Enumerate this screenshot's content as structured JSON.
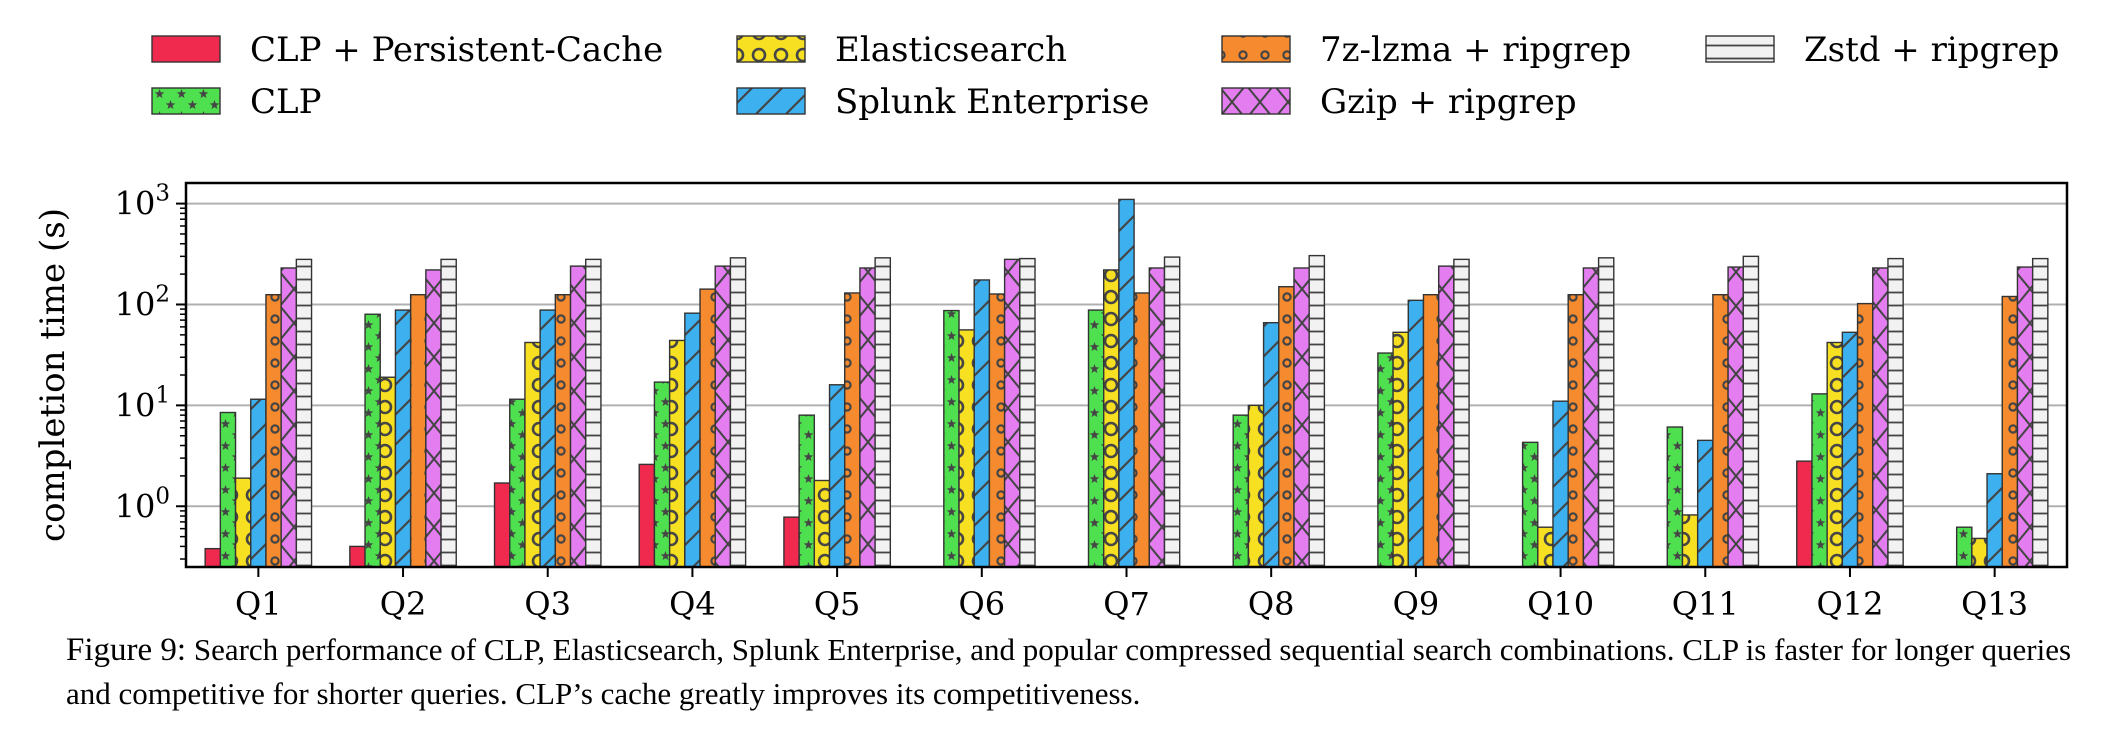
{
  "chart_data": {
    "type": "bar",
    "title": "",
    "xlabel": "",
    "ylabel": "completion time (s)",
    "yscale": "log",
    "ylim": [
      0.25,
      1600
    ],
    "yticks": [
      1,
      10,
      100,
      1000
    ],
    "ytick_labels": [
      {
        "base": "10",
        "exp": "0"
      },
      {
        "base": "10",
        "exp": "1"
      },
      {
        "base": "10",
        "exp": "2"
      },
      {
        "base": "10",
        "exp": "3"
      }
    ],
    "grid": "horizontal major",
    "legend_position": "top",
    "categories": [
      "Q1",
      "Q2",
      "Q3",
      "Q4",
      "Q5",
      "Q6",
      "Q7",
      "Q8",
      "Q9",
      "Q10",
      "Q11",
      "Q12",
      "Q13"
    ],
    "series": [
      {
        "name": "CLP + Persistent-Cache",
        "color": "#f0294f",
        "pattern": "solid",
        "values": [
          0.38,
          0.4,
          1.7,
          2.6,
          0.78,
          null,
          null,
          null,
          null,
          null,
          null,
          2.8,
          null
        ]
      },
      {
        "name": "CLP",
        "color": "#4ee04e",
        "pattern": "stars",
        "values": [
          8.5,
          80,
          11.5,
          17,
          8.0,
          87,
          88,
          8.0,
          33,
          4.3,
          6.1,
          13,
          0.62
        ]
      },
      {
        "name": "Elasticsearch",
        "color": "#f7e022",
        "pattern": "circles",
        "values": [
          1.9,
          19,
          42,
          44,
          1.8,
          56,
          220,
          10,
          53,
          0.62,
          0.82,
          42,
          0.48
        ]
      },
      {
        "name": "Splunk Enterprise",
        "color": "#3db0f0",
        "pattern": "diagonal",
        "values": [
          11.5,
          88,
          88,
          82,
          16,
          175,
          1100,
          66,
          110,
          11,
          4.5,
          53,
          2.1
        ]
      },
      {
        "name": "7z-lzma + ripgrep",
        "color": "#f58a2f",
        "pattern": "dots",
        "values": [
          125,
          125,
          125,
          142,
          130,
          127,
          130,
          150,
          125,
          125,
          125,
          102,
          120
        ]
      },
      {
        "name": "Gzip + ripgrep",
        "color": "#e37df0",
        "pattern": "cross",
        "values": [
          230,
          220,
          240,
          240,
          230,
          280,
          230,
          230,
          240,
          230,
          235,
          230,
          235
        ]
      },
      {
        "name": "Zstd + ripgrep",
        "color": "#f2f2f2",
        "pattern": "horizontal",
        "values": [
          280,
          280,
          280,
          290,
          290,
          285,
          295,
          305,
          280,
          290,
          300,
          285,
          285
        ]
      }
    ]
  },
  "caption": {
    "label": "Figure 9:",
    "text": "Search performance of CLP, Elasticsearch, Splunk Enterprise, and popular compressed sequential search combinations. CLP is faster for longer queries and competitive for shorter queries. CLP’s cache greatly improves its competitiveness."
  }
}
